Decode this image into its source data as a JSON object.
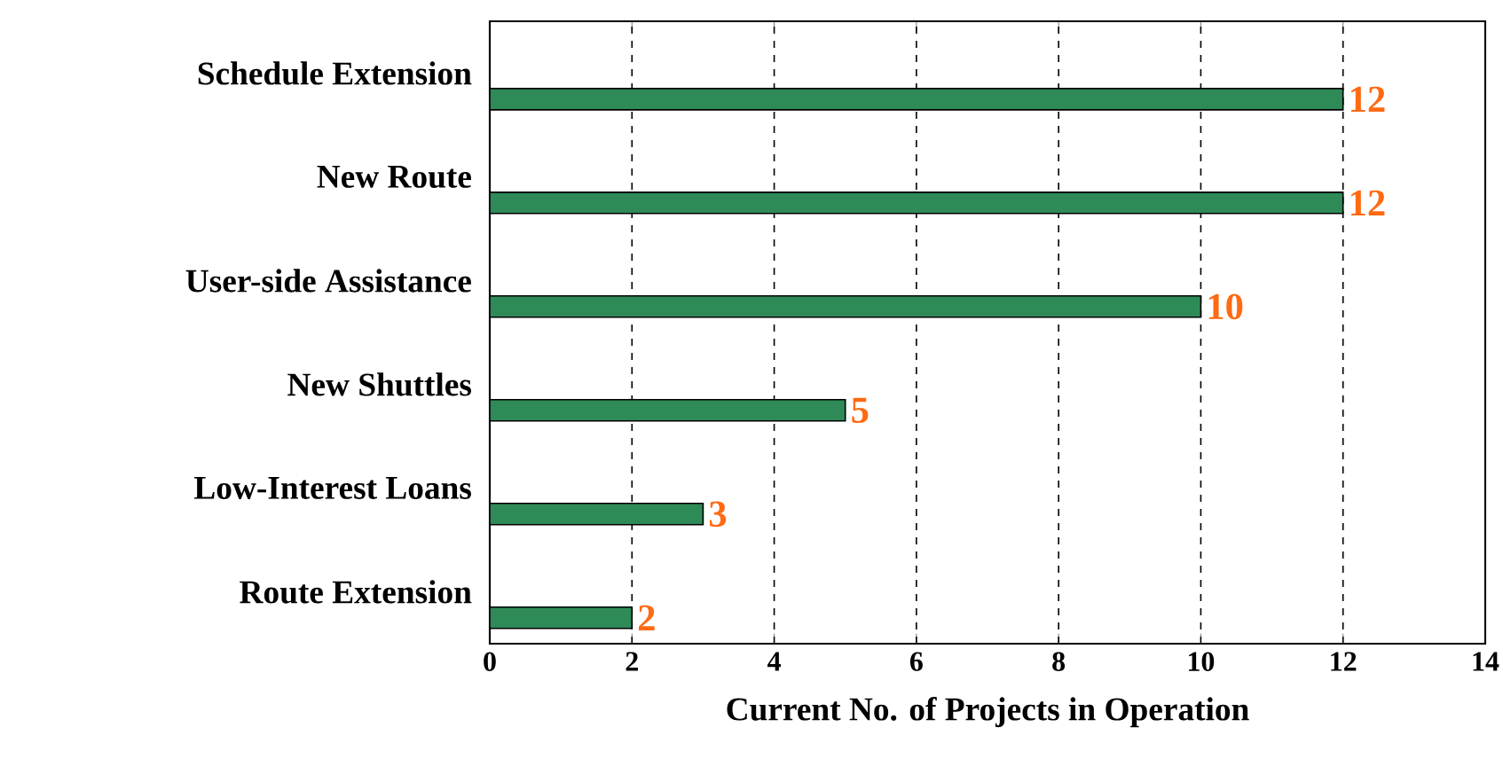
{
  "chart_data": {
    "type": "bar",
    "orientation": "horizontal",
    "xlabel": "Current No. of Projects in Operation",
    "categories": [
      "Schedule Extension",
      "New Route",
      "User-side Assistance",
      "New Shuttles",
      "Low-Interest Loans",
      "Route Extension"
    ],
    "values": [
      12,
      12,
      10,
      5,
      3,
      2
    ],
    "color": "#2e8b57",
    "data_labels": true,
    "grid": "x",
    "xlim": [
      0,
      14
    ],
    "xticks": [
      0,
      2,
      4,
      6,
      8,
      10,
      12,
      14
    ]
  }
}
